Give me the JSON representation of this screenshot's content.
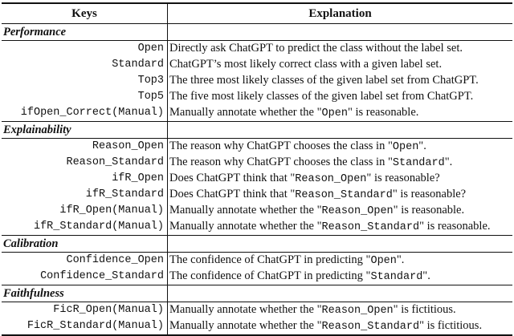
{
  "header": {
    "keys": "Keys",
    "explanation": "Explanation"
  },
  "sections": [
    {
      "title": "Performance",
      "rows": [
        {
          "key": "Open",
          "pre": "Directly ask ChatGPT to predict the class without the label set.",
          "code": "",
          "post": ""
        },
        {
          "key": "Standard",
          "pre": "ChatGPT’s most likely correct class with a given label set.",
          "code": "",
          "post": ""
        },
        {
          "key": "Top3",
          "pre": "The three most likely classes of the given label set from ChatGPT.",
          "code": "",
          "post": ""
        },
        {
          "key": "Top5",
          "pre": "The five most likely classes of the given label set from ChatGPT.",
          "code": "",
          "post": ""
        },
        {
          "key": "ifOpen_Correct(Manual)",
          "pre": "Manually annotate whether the \"",
          "code": "Open",
          "post": "\" is reasonable."
        }
      ]
    },
    {
      "title": "Explainability",
      "rows": [
        {
          "key": "Reason_Open",
          "pre": "The reason why ChatGPT chooses the class in \"",
          "code": "Open",
          "post": "\"."
        },
        {
          "key": "Reason_Standard",
          "pre": "The reason why ChatGPT chooses the class in \"",
          "code": "Standard",
          "post": "\"."
        },
        {
          "key": "ifR_Open",
          "pre": "Does ChatGPT think that \"",
          "code": "Reason_Open",
          "post": "\" is reasonable?"
        },
        {
          "key": "ifR_Standard",
          "pre": "Does ChatGPT think that \"",
          "code": "Reason_Standard",
          "post": "\" is reasonable?"
        },
        {
          "key": "ifR_Open(Manual)",
          "pre": "Manually annotate whether the \"",
          "code": "Reason_Open",
          "post": "\" is reasonable."
        },
        {
          "key": "ifR_Standard(Manual)",
          "pre": "Manually annotate whether the \"",
          "code": "Reason_Standard",
          "post": "\" is reasonable."
        }
      ]
    },
    {
      "title": "Calibration",
      "rows": [
        {
          "key": "Confidence_Open",
          "pre": "The confidence of ChatGPT in predicting \"",
          "code": "Open",
          "post": "\"."
        },
        {
          "key": "Confidence_Standard",
          "pre": "The confidence of ChatGPT in predicting \"",
          "code": "Standard",
          "post": "\"."
        }
      ]
    },
    {
      "title": "Faithfulness",
      "rows": [
        {
          "key": "FicR_Open(Manual)",
          "pre": "Manually annotate whether the \"",
          "code": "Reason_Open",
          "post": "\" is fictitious."
        },
        {
          "key": "FicR_Standard(Manual)",
          "pre": "Manually annotate whether the \"",
          "code": "Reason_Standard",
          "post": "\" is fictitious."
        }
      ]
    }
  ]
}
